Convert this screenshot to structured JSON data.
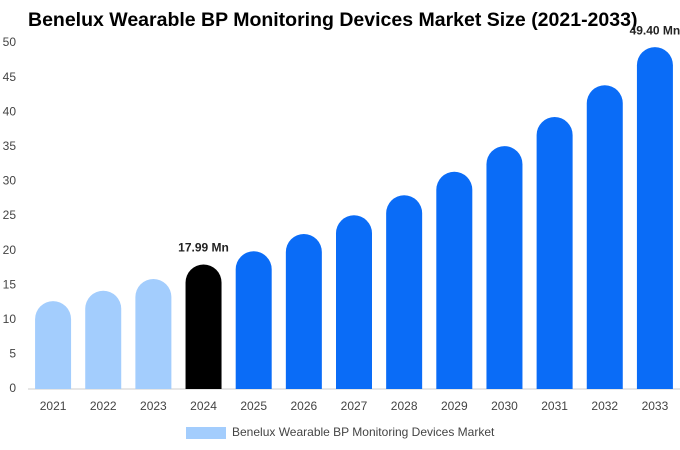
{
  "chart_data": {
    "type": "bar",
    "title": "Benelux Wearable BP Monitoring Devices Market Size (2021-2033)",
    "categories": [
      "2021",
      "2022",
      "2023",
      "2024",
      "2025",
      "2026",
      "2027",
      "2028",
      "2029",
      "2030",
      "2031",
      "2032",
      "2033"
    ],
    "series": [
      {
        "name": "Benelux Wearable BP Monitoring Devices Market",
        "color": "#a3cdfd",
        "colors": [
          "#a3cdfd",
          "#a3cdfd",
          "#a3cdfd",
          "#000000",
          "#0a6cf7",
          "#0a6cf7",
          "#0a6cf7",
          "#0a6cf7",
          "#0a6cf7",
          "#0a6cf7",
          "#0a6cf7",
          "#0a6cf7",
          "#0a6cf7"
        ],
        "values": [
          12.7,
          14.2,
          15.9,
          17.99,
          19.9,
          22.4,
          25.1,
          28.0,
          31.4,
          35.1,
          39.3,
          43.9,
          49.4
        ],
        "value_labels": [
          null,
          null,
          null,
          "17.99 Mn",
          null,
          null,
          null,
          null,
          null,
          null,
          null,
          null,
          "49.40 Mn"
        ]
      }
    ],
    "ylim": [
      0,
      50
    ],
    "yticks": [
      0,
      5,
      10,
      15,
      20,
      25,
      30,
      35,
      40,
      45,
      50
    ],
    "grid": false
  }
}
